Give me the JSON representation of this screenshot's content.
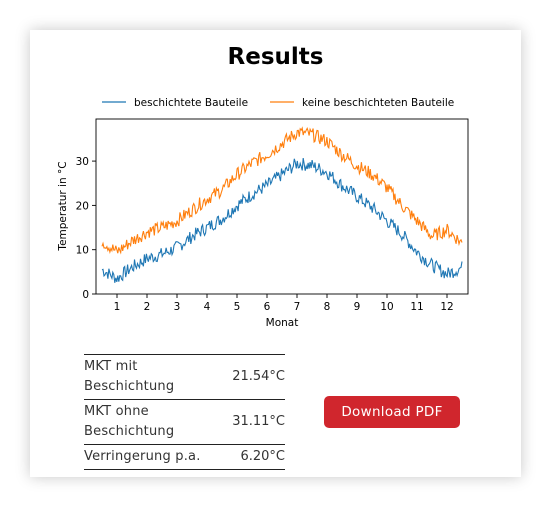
{
  "page": {
    "title": "Results"
  },
  "results": {
    "rows": [
      {
        "label": "MKT mit Beschichtung",
        "value": "21.54°C"
      },
      {
        "label": "MKT ohne Beschichtung",
        "value": "31.11°C"
      },
      {
        "label": "Verringerung p.a.",
        "value": "6.20°C"
      }
    ]
  },
  "actions": {
    "download_label": "Download  PDF"
  },
  "chart_data": {
    "type": "line",
    "xlabel": "Monat",
    "ylabel": "Temperatur in °C",
    "x_ticks": [
      "1",
      "2",
      "3",
      "4",
      "5",
      "6",
      "7",
      "8",
      "9",
      "10",
      "11",
      "12"
    ],
    "y_ticks": [
      "0",
      "10",
      "20",
      "30"
    ],
    "xlim": [
      0.3,
      12.7
    ],
    "ylim": [
      0,
      39.5
    ],
    "legend_position": "top",
    "colors": {
      "coated": "#1f77b4",
      "uncoated": "#ff7f0e"
    },
    "series": [
      {
        "name": "beschichtete Bauteile",
        "x": [
          0.5,
          1.0,
          1.5,
          2.0,
          2.5,
          3.0,
          3.5,
          4.0,
          4.5,
          5.0,
          5.5,
          6.0,
          6.5,
          7.0,
          7.5,
          8.0,
          8.5,
          9.0,
          9.5,
          10.0,
          10.5,
          11.0,
          11.5,
          12.0,
          12.5
        ],
        "values": [
          5.5,
          3.5,
          6.0,
          8.0,
          9.0,
          10.5,
          13.0,
          15.0,
          17.0,
          20.0,
          22.5,
          24.5,
          27.0,
          29.5,
          29.0,
          27.5,
          24.5,
          22.0,
          19.5,
          16.5,
          13.5,
          9.5,
          6.5,
          4.5,
          6.0
        ]
      },
      {
        "name": "keine beschichteten Bauteile",
        "x": [
          0.5,
          1.0,
          1.5,
          2.0,
          2.5,
          3.0,
          3.5,
          4.0,
          4.5,
          5.0,
          5.5,
          6.0,
          6.5,
          7.0,
          7.5,
          8.0,
          8.5,
          9.0,
          9.5,
          10.0,
          10.5,
          11.0,
          11.5,
          12.0,
          12.5
        ],
        "values": [
          12.0,
          9.5,
          12.0,
          14.0,
          15.0,
          16.5,
          19.0,
          21.5,
          23.5,
          27.0,
          29.5,
          31.5,
          34.0,
          36.5,
          36.0,
          34.5,
          31.5,
          29.0,
          27.0,
          24.0,
          20.0,
          16.5,
          13.0,
          14.5,
          11.5
        ]
      }
    ]
  }
}
